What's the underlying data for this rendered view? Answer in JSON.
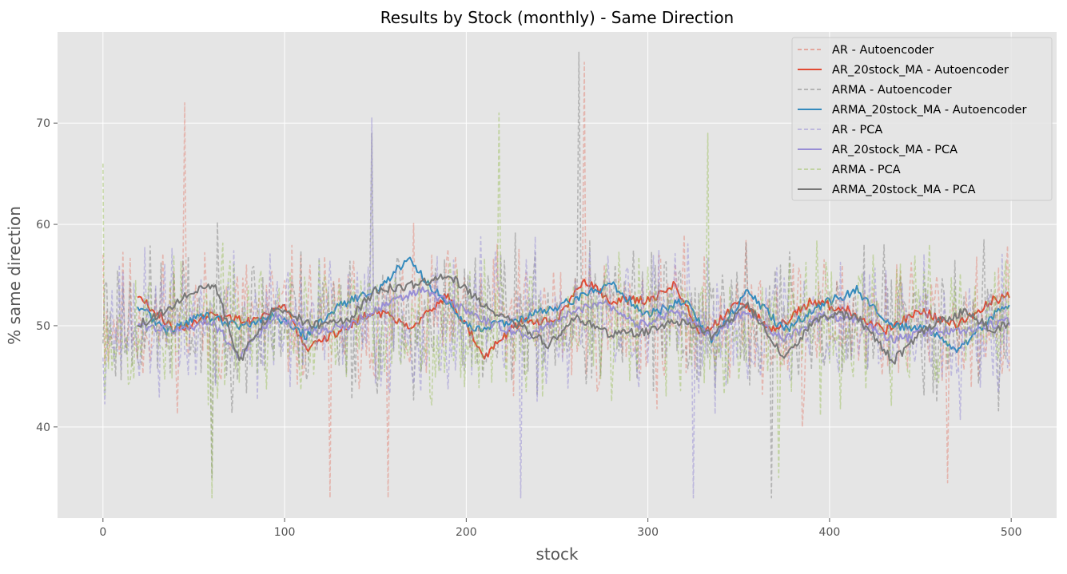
{
  "chart_data": {
    "type": "line",
    "title": "Results by Stock (monthly) - Same Direction",
    "xlabel": "stock",
    "ylabel": "% same direction",
    "xlim": [
      -25,
      525
    ],
    "ylim": [
      31,
      79
    ],
    "xticks": [
      0,
      100,
      200,
      300,
      400,
      500
    ],
    "yticks": [
      40,
      50,
      60,
      70
    ],
    "grid": true,
    "style": "ggplot",
    "legend_position": "top-right",
    "n_points": 500,
    "series": [
      {
        "name": "AR - Autoencoder",
        "color": "#E24A33",
        "dashed": true,
        "alpha": 0.3,
        "kind": "raw",
        "mean": 50.5,
        "amplitude": 7.2,
        "seed": 11,
        "x": [
          0,
          45,
          125,
          157,
          265,
          385,
          465
        ],
        "y": [
          57,
          72,
          33,
          33,
          76,
          40,
          34.5
        ]
      },
      {
        "name": "AR_20stock_MA - Autoencoder",
        "color": "#E24A33",
        "dashed": false,
        "alpha": 1.0,
        "kind": "ma",
        "x_start": 19,
        "x": [
          19,
          40,
          60,
          80,
          100,
          112,
          130,
          150,
          170,
          190,
          210,
          230,
          250,
          265,
          280,
          300,
          315,
          330,
          350,
          370,
          390,
          410,
          430,
          450,
          470,
          490,
          500
        ],
        "y": [
          53,
          49.5,
          51,
          50.5,
          52,
          47.5,
          49.5,
          51.5,
          50,
          53,
          47,
          50.5,
          50.5,
          54.5,
          52.5,
          52.5,
          54,
          49,
          52.5,
          49.5,
          52.5,
          51.5,
          49.5,
          51.5,
          50,
          52.5,
          53
        ]
      },
      {
        "name": "ARMA - Autoencoder",
        "color": "#777777",
        "dashed": true,
        "alpha": 0.45,
        "kind": "raw",
        "mean": 50.5,
        "amplitude": 7.5,
        "seed": 23,
        "x": [
          1,
          60,
          148,
          262,
          368
        ],
        "y": [
          54,
          35,
          69,
          77,
          33
        ]
      },
      {
        "name": "ARMA_20stock_MA - Autoencoder",
        "color": "#348ABD",
        "dashed": false,
        "alpha": 1.0,
        "kind": "ma",
        "x_start": 19,
        "x": [
          19,
          35,
          55,
          75,
          95,
          112,
          130,
          150,
          168,
          185,
          205,
          225,
          245,
          265,
          280,
          300,
          320,
          335,
          355,
          375,
          395,
          415,
          435,
          455,
          470,
          490,
          500
        ],
        "y": [
          52,
          49.5,
          51,
          50,
          51,
          49,
          52,
          53.5,
          56.5,
          53,
          49.5,
          50.5,
          51.5,
          53,
          54,
          51,
          52.5,
          48.5,
          53.5,
          49.5,
          52,
          53.5,
          50,
          49.5,
          47.5,
          51,
          52
        ]
      },
      {
        "name": "AR - PCA",
        "color": "#988ED5",
        "dashed": true,
        "alpha": 0.5,
        "kind": "raw",
        "mean": 50,
        "amplitude": 7.3,
        "seed": 37,
        "x": [
          148,
          230,
          325
        ],
        "y": [
          70.5,
          33,
          33
        ]
      },
      {
        "name": "AR_20stock_MA - PCA",
        "color": "#988ED5",
        "dashed": false,
        "alpha": 1.0,
        "kind": "ma",
        "x_start": 19,
        "x": [
          19,
          40,
          60,
          75,
          95,
          115,
          135,
          155,
          175,
          195,
          215,
          235,
          255,
          275,
          295,
          315,
          335,
          355,
          375,
          395,
          415,
          435,
          455,
          475,
          500
        ],
        "y": [
          50,
          49.5,
          50.5,
          47,
          51,
          49.5,
          50,
          52,
          53.5,
          52,
          50,
          49,
          51,
          52.5,
          50,
          51.5,
          49,
          51.5,
          48.5,
          51,
          50.5,
          48.5,
          49.5,
          49.5,
          50.5
        ]
      },
      {
        "name": "ARMA - PCA",
        "color": "#8EBA42",
        "dashed": true,
        "alpha": 0.4,
        "kind": "raw",
        "mean": 50,
        "amplitude": 7.0,
        "seed": 53,
        "x": [
          0,
          60,
          218,
          333,
          372
        ],
        "y": [
          66,
          33,
          71,
          69,
          35
        ]
      },
      {
        "name": "ARMA_20stock_MA - PCA",
        "color": "#777777",
        "dashed": false,
        "alpha": 1.0,
        "kind": "ma",
        "x_start": 19,
        "x": [
          19,
          35,
          50,
          62,
          75,
          95,
          115,
          135,
          150,
          170,
          190,
          210,
          230,
          245,
          260,
          280,
          300,
          320,
          335,
          355,
          375,
          395,
          415,
          435,
          455,
          475,
          490,
          500
        ],
        "y": [
          50,
          51.5,
          53.5,
          54,
          46.5,
          52,
          50,
          50.5,
          53.5,
          54,
          55,
          52,
          50,
          48,
          51,
          49,
          49.5,
          50.5,
          49,
          52,
          47,
          51,
          51,
          46.5,
          50,
          51.5,
          49.5,
          50.5
        ]
      }
    ]
  }
}
